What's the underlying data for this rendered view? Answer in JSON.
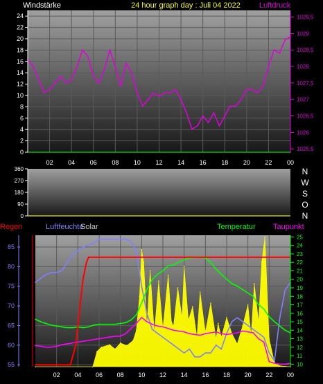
{
  "colors": {
    "background": "#000000",
    "plot_top": "#a0a0a0",
    "plot_bottom": "#181818",
    "title": "#ffff00",
    "windstaerke": "#ffffff",
    "luftdruck": "#e000e0",
    "wind_direction": "#ffffff",
    "regen": "#ff0000",
    "luftfeuchte": "#8080ff",
    "solar": "#c8c8c8",
    "solar_fill": "#ffff00",
    "temperatur": "#00ff00",
    "taupunkt": "#ff00ff",
    "baseline": "#c8c800"
  },
  "chart_data": [
    {
      "id": "wind-pressure",
      "type": "line",
      "title": "24 hour graph day : Juli 04 2022",
      "left_label": "Windstärke",
      "right_label": "Luftdruck",
      "x_ticks": [
        "02",
        "04",
        "06",
        "08",
        "10",
        "12",
        "14",
        "16",
        "18",
        "20",
        "22",
        "00"
      ],
      "y_left_ticks": [
        "0",
        "2",
        "4",
        "6",
        "8",
        "10",
        "12",
        "14",
        "16",
        "18",
        "20",
        "22",
        "24"
      ],
      "y_left_range": [
        0,
        25
      ],
      "y_right_ticks": [
        "1025,5",
        "1026",
        "1026,5",
        "1027",
        "1027,5",
        "1028",
        "1028,5",
        "1029",
        "1029,5"
      ],
      "y_right_range": [
        1025.4,
        1029.7
      ],
      "grid": true,
      "series": [
        {
          "name": "Luftdruck",
          "axis": "right",
          "x": [
            0,
            0.5,
            1,
            1.5,
            2,
            2.5,
            3,
            3.5,
            4,
            4.5,
            5,
            5.5,
            6,
            6.5,
            7,
            7.5,
            8,
            8.5,
            9,
            9.5,
            10,
            10.5,
            11,
            11.5,
            12,
            12.5,
            13,
            13.5,
            14,
            14.5,
            15,
            15.5,
            16,
            16.5,
            17,
            17.5,
            18,
            18.5,
            19,
            19.5,
            20,
            20.5,
            21,
            21.5,
            22,
            22.5,
            23,
            23.5,
            24
          ],
          "y": [
            1028.2,
            1028.0,
            1027.6,
            1027.2,
            1027.3,
            1027.5,
            1027.7,
            1027.5,
            1027.6,
            1028.0,
            1028.5,
            1028.3,
            1027.7,
            1027.5,
            1027.9,
            1028.5,
            1028.0,
            1027.4,
            1028.1,
            1027.8,
            1027.2,
            1026.8,
            1027.0,
            1027.2,
            1027.1,
            1027.2,
            1027.2,
            1027.3,
            1027.0,
            1026.6,
            1026.1,
            1026.2,
            1026.5,
            1026.3,
            1026.6,
            1026.2,
            1026.5,
            1026.8,
            1026.8,
            1027.0,
            1027.3,
            1027.3,
            1027.2,
            1027.4,
            1028.0,
            1028.5,
            1028.4,
            1028.8,
            1028.9
          ]
        },
        {
          "name": "Windstärke",
          "axis": "left",
          "x": [
            0,
            24
          ],
          "y": [
            0,
            0
          ]
        }
      ]
    },
    {
      "id": "wind-direction",
      "type": "scatter",
      "y_ticks": [
        "360",
        "270",
        "180",
        "90",
        "0"
      ],
      "y_range": [
        0,
        360
      ],
      "compass_labels": [
        "N",
        "W",
        "S",
        "O",
        "N"
      ],
      "series": []
    },
    {
      "id": "rain-humidity-solar-temp",
      "type": "line",
      "labels": {
        "regen": "Regen",
        "luftfeuchte": "Luftfeuchte",
        "solar": "Solar",
        "temperatur": "Temperatur",
        "taupunkt": "Taupunkt"
      },
      "x_ticks": [
        "02",
        "04",
        "06",
        "08",
        "10",
        "12",
        "14",
        "16",
        "18",
        "20",
        "22",
        "00"
      ],
      "y_left_ticks": [
        "55",
        "60",
        "65",
        "70",
        "75",
        "80",
        "85"
      ],
      "y_left_range": [
        54.5,
        88
      ],
      "y_right_ticks": [
        "10",
        "11",
        "12",
        "13",
        "14",
        "15",
        "16",
        "17",
        "18",
        "19",
        "20",
        "21",
        "22",
        "23",
        "24",
        "25"
      ],
      "y_right_range": [
        9.7,
        25.2
      ],
      "grid": true,
      "series": [
        {
          "name": "Luftfeuchte",
          "axis": "left",
          "x": [
            0,
            0.5,
            1,
            1.5,
            2,
            2.5,
            3,
            3.5,
            4,
            4.5,
            5,
            5.5,
            6,
            6.5,
            7,
            7.5,
            8,
            8.5,
            9,
            9.5,
            10,
            10.5,
            11,
            11.5,
            12,
            12.5,
            13,
            13.5,
            14,
            14.5,
            15,
            15.5,
            16,
            16.5,
            17,
            17.5,
            18,
            18.5,
            19,
            19.5,
            20,
            20.5,
            21,
            21.5,
            22,
            22.5,
            23,
            23.5,
            24
          ],
          "y": [
            76,
            77,
            78,
            78.5,
            78.5,
            79,
            81,
            83,
            84,
            85,
            85.5,
            86,
            87,
            87,
            87,
            87,
            87,
            87,
            86.5,
            84,
            75,
            68,
            64,
            63,
            62,
            61,
            60,
            59,
            58,
            59,
            57,
            57,
            58,
            58,
            60,
            59,
            63,
            66,
            67,
            66,
            65,
            64,
            63,
            62,
            58,
            56,
            67,
            74,
            76
          ]
        },
        {
          "name": "Temperatur",
          "axis": "right",
          "x": [
            0,
            0.5,
            1,
            1.5,
            2,
            2.5,
            3,
            3.5,
            4,
            4.5,
            5,
            5.5,
            6,
            6.5,
            7,
            7.5,
            8,
            8.5,
            9,
            9.5,
            10,
            10.5,
            11,
            11.5,
            12,
            12.5,
            13,
            13.5,
            14,
            14.5,
            15,
            15.5,
            16,
            16.5,
            17,
            17.5,
            18,
            18.5,
            19,
            19.5,
            20,
            20.5,
            21,
            21.5,
            22,
            22.5,
            23,
            23.5,
            24
          ],
          "y": [
            15.3,
            15,
            14.8,
            14.6,
            14.5,
            14.4,
            14.3,
            14.3,
            14.4,
            14.3,
            14.4,
            14.6,
            14.7,
            14.7,
            14.7,
            14.7,
            14.8,
            14.9,
            15.2,
            15.8,
            17.2,
            18.8,
            20,
            20.6,
            21,
            21.6,
            21.7,
            22,
            22.3,
            22.5,
            22.6,
            22.7,
            22.5,
            22,
            21.2,
            20.6,
            20,
            19.5,
            19.2,
            18.8,
            18.4,
            18,
            17,
            16.5,
            15.6,
            15,
            14.5,
            14,
            13.7
          ]
        },
        {
          "name": "Taupunkt",
          "axis": "right",
          "x": [
            0,
            0.5,
            1,
            1.5,
            2,
            2.5,
            3,
            3.5,
            4,
            4.5,
            5,
            5.5,
            6,
            6.5,
            7,
            7.5,
            8,
            8.5,
            9,
            9.5,
            10,
            10.5,
            11,
            11.5,
            12,
            12.5,
            13,
            13.5,
            14,
            14.5,
            15,
            15.5,
            16,
            16.5,
            17,
            17.5,
            18,
            18.5,
            19,
            19.5,
            20,
            20.5,
            21,
            21.5,
            22,
            22.5,
            23,
            23.5,
            24
          ],
          "y": [
            12.2,
            12.1,
            12.0,
            12.0,
            12.1,
            12.3,
            12.4,
            12.5,
            12.6,
            12.7,
            12.8,
            12.9,
            13,
            13.1,
            13.2,
            13.3,
            13.3,
            13.6,
            14.2,
            14.8,
            15.5,
            15.0,
            14.7,
            14.5,
            14.4,
            14.2,
            14.0,
            13.9,
            13.8,
            13.6,
            13.5,
            13.4,
            13.6,
            13.7,
            13.8,
            13.6,
            13.5,
            13.6,
            13.7,
            13.9,
            13.8,
            13.7,
            13.0,
            12.6,
            10.3,
            10.1,
            10.0,
            10.0,
            10.1
          ]
        },
        {
          "name": "Regen",
          "axis": "left",
          "x": [
            0,
            3.3,
            3.8,
            4.2,
            4.5,
            4.8,
            5,
            24
          ],
          "y": [
            55,
            55,
            60,
            70,
            77,
            81,
            82.4,
            82.4
          ]
        },
        {
          "name": "Solar",
          "axis": "right",
          "x": [
            0,
            5.4,
            5.8,
            6.2,
            7,
            7.5,
            8,
            8.6,
            9.2,
            9.5,
            9.8,
            10,
            10.2,
            10.5,
            10.8,
            11.2,
            11.6,
            12,
            12.5,
            12.8,
            13,
            13.4,
            13.8,
            14,
            14.4,
            14.8,
            15.2,
            15.5,
            16,
            16.5,
            17,
            17.2,
            17.5,
            18,
            18.5,
            19,
            19.5,
            20,
            20.3,
            20.6,
            21,
            21.3,
            21.6,
            22,
            22.5,
            23,
            24
          ],
          "y": [
            9.7,
            9.7,
            11.5,
            12,
            12.3,
            11.8,
            12.5,
            12.2,
            12.8,
            14,
            18,
            23.5,
            22,
            14.5,
            21,
            13.8,
            19.8,
            14.2,
            20.5,
            15,
            14.5,
            19,
            15.5,
            21.5,
            15.2,
            16.8,
            13.2,
            18.5,
            13.8,
            17.2,
            13,
            14.8,
            13.2,
            15.5,
            13.6,
            12.4,
            14.5,
            17,
            13.4,
            19.5,
            15,
            22,
            25,
            13,
            10.2,
            9.8,
            9.7
          ]
        }
      ]
    }
  ]
}
